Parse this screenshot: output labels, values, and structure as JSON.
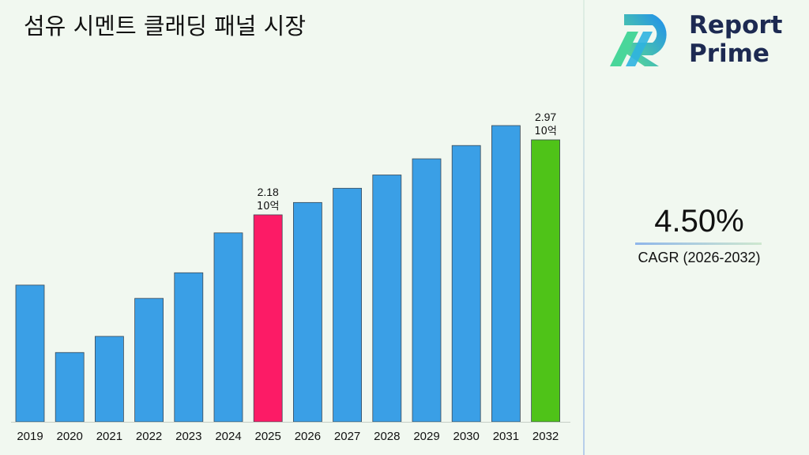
{
  "title": "섬유 시멘트 클래딩 패널 시장",
  "logo": {
    "line1": "Report",
    "line2": "Prime",
    "icon": "report-prime-logo-icon"
  },
  "cagr": {
    "value": "4.50%",
    "label": "CAGR (2026-2032)"
  },
  "colors": {
    "default": "#3a9fe6",
    "highlight_2025": "#fc1b66",
    "highlight_2032": "#4fc318"
  },
  "chart_data": {
    "type": "bar",
    "categories": [
      "2019",
      "2020",
      "2021",
      "2022",
      "2023",
      "2024",
      "2025",
      "2026",
      "2027",
      "2028",
      "2029",
      "2030",
      "2031",
      "2032"
    ],
    "values": [
      1.44,
      0.73,
      0.9,
      1.3,
      1.57,
      1.99,
      2.18,
      2.31,
      2.46,
      2.6,
      2.77,
      2.91,
      3.12,
      2.97
    ],
    "annotations": [
      {
        "category": "2025",
        "value_label": "2.18",
        "unit_label": "10억"
      },
      {
        "category": "2032",
        "value_label": "2.97",
        "unit_label": "10억"
      }
    ],
    "bar_colors": [
      "#3a9fe6",
      "#3a9fe6",
      "#3a9fe6",
      "#3a9fe6",
      "#3a9fe6",
      "#3a9fe6",
      "#fc1b66",
      "#3a9fe6",
      "#3a9fe6",
      "#3a9fe6",
      "#3a9fe6",
      "#3a9fe6",
      "#3a9fe6",
      "#4fc318"
    ],
    "xlabel": "",
    "ylabel": "",
    "grid": false
  }
}
